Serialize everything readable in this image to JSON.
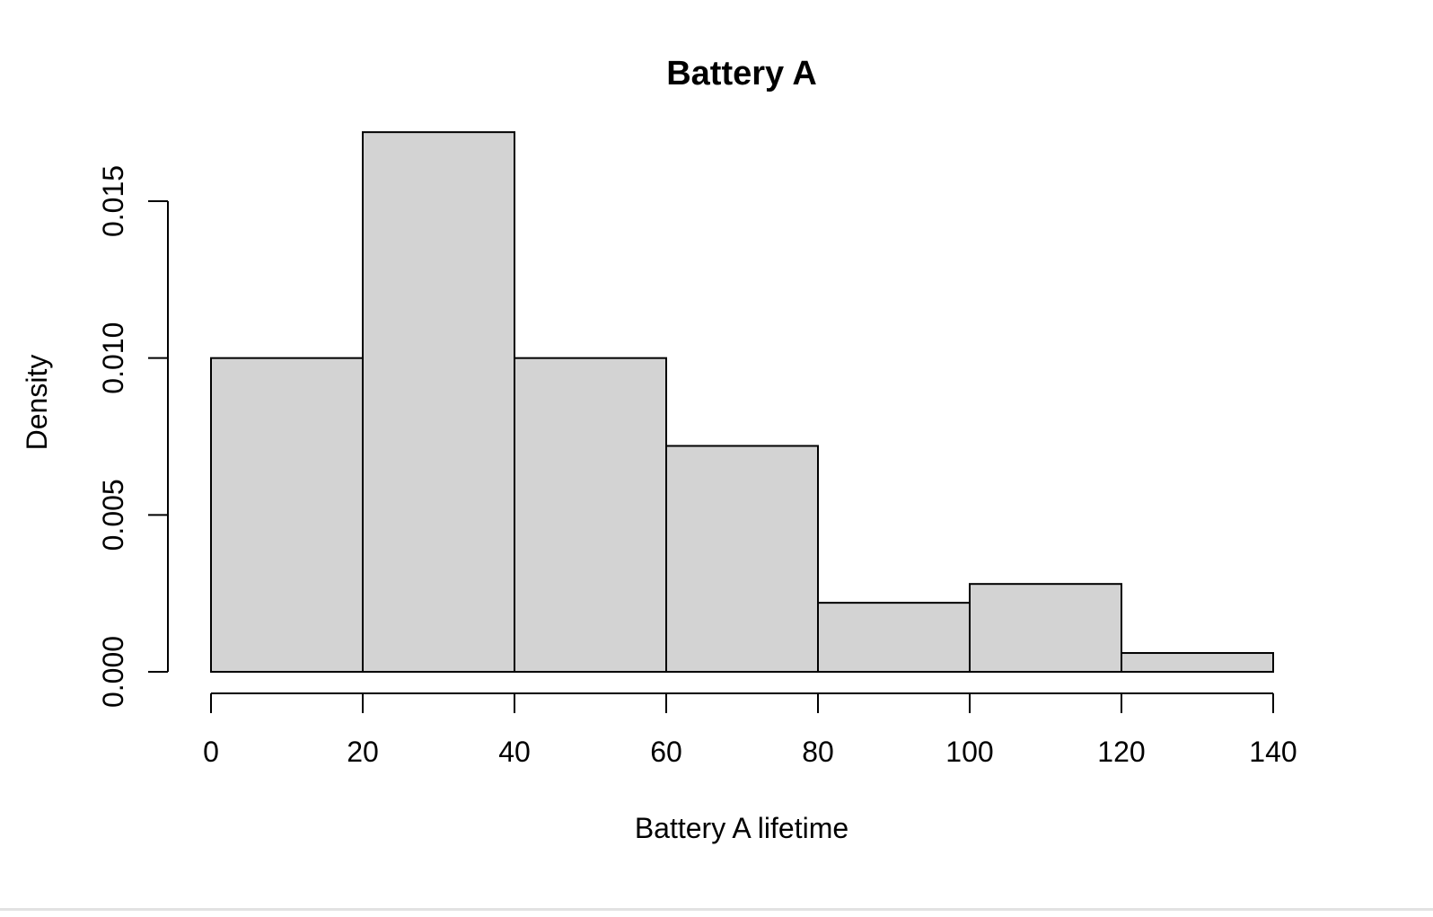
{
  "chart_data": {
    "type": "bar",
    "title": "Battery A",
    "xlabel": "Battery A lifetime",
    "ylabel": "Density",
    "bins": [
      {
        "from": 0,
        "to": 20,
        "density": 0.01
      },
      {
        "from": 20,
        "to": 40,
        "density": 0.0172
      },
      {
        "from": 40,
        "to": 60,
        "density": 0.01
      },
      {
        "from": 60,
        "to": 80,
        "density": 0.0072
      },
      {
        "from": 80,
        "to": 100,
        "density": 0.0022
      },
      {
        "from": 100,
        "to": 120,
        "density": 0.0028
      },
      {
        "from": 120,
        "to": 140,
        "density": 0.0006
      }
    ],
    "xlim": [
      0,
      140
    ],
    "ylim": [
      0,
      0.015
    ],
    "x_ticks": [
      0,
      20,
      40,
      60,
      80,
      100,
      120,
      140
    ],
    "x_tick_labels": [
      "0",
      "20",
      "40",
      "60",
      "80",
      "100",
      "120",
      "140"
    ],
    "y_ticks": [
      0,
      0.005,
      0.01,
      0.015
    ],
    "y_tick_labels": [
      "0.000",
      "0.005",
      "0.010",
      "0.015"
    ],
    "grid": false,
    "legend": "none",
    "colors": {
      "bar_fill": "#d3d3d3",
      "bar_stroke": "#000000",
      "axis": "#000000",
      "background": "#ffffff"
    }
  }
}
